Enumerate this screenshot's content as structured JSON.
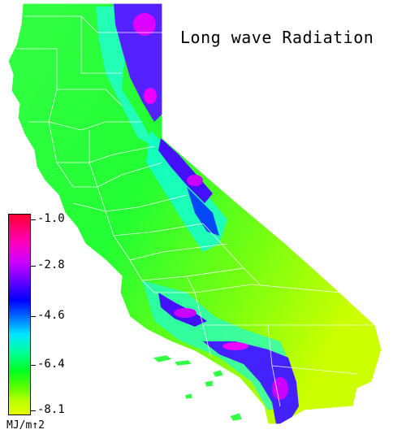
{
  "title": "Long wave Radiation",
  "legend": {
    "ticks": [
      "-1.0",
      "-2.8",
      "-4.6",
      "-6.4",
      "-8.1"
    ],
    "units": "MJ/m↑2"
  },
  "colors": {
    "background": "#ffffff",
    "border": "#ffffff",
    "low": "#e8ff00",
    "mid_low": "#00ff22",
    "mid": "#00e6ff",
    "mid_high": "#0000ff",
    "high": "#ff00bb",
    "max": "#ff0033"
  }
}
